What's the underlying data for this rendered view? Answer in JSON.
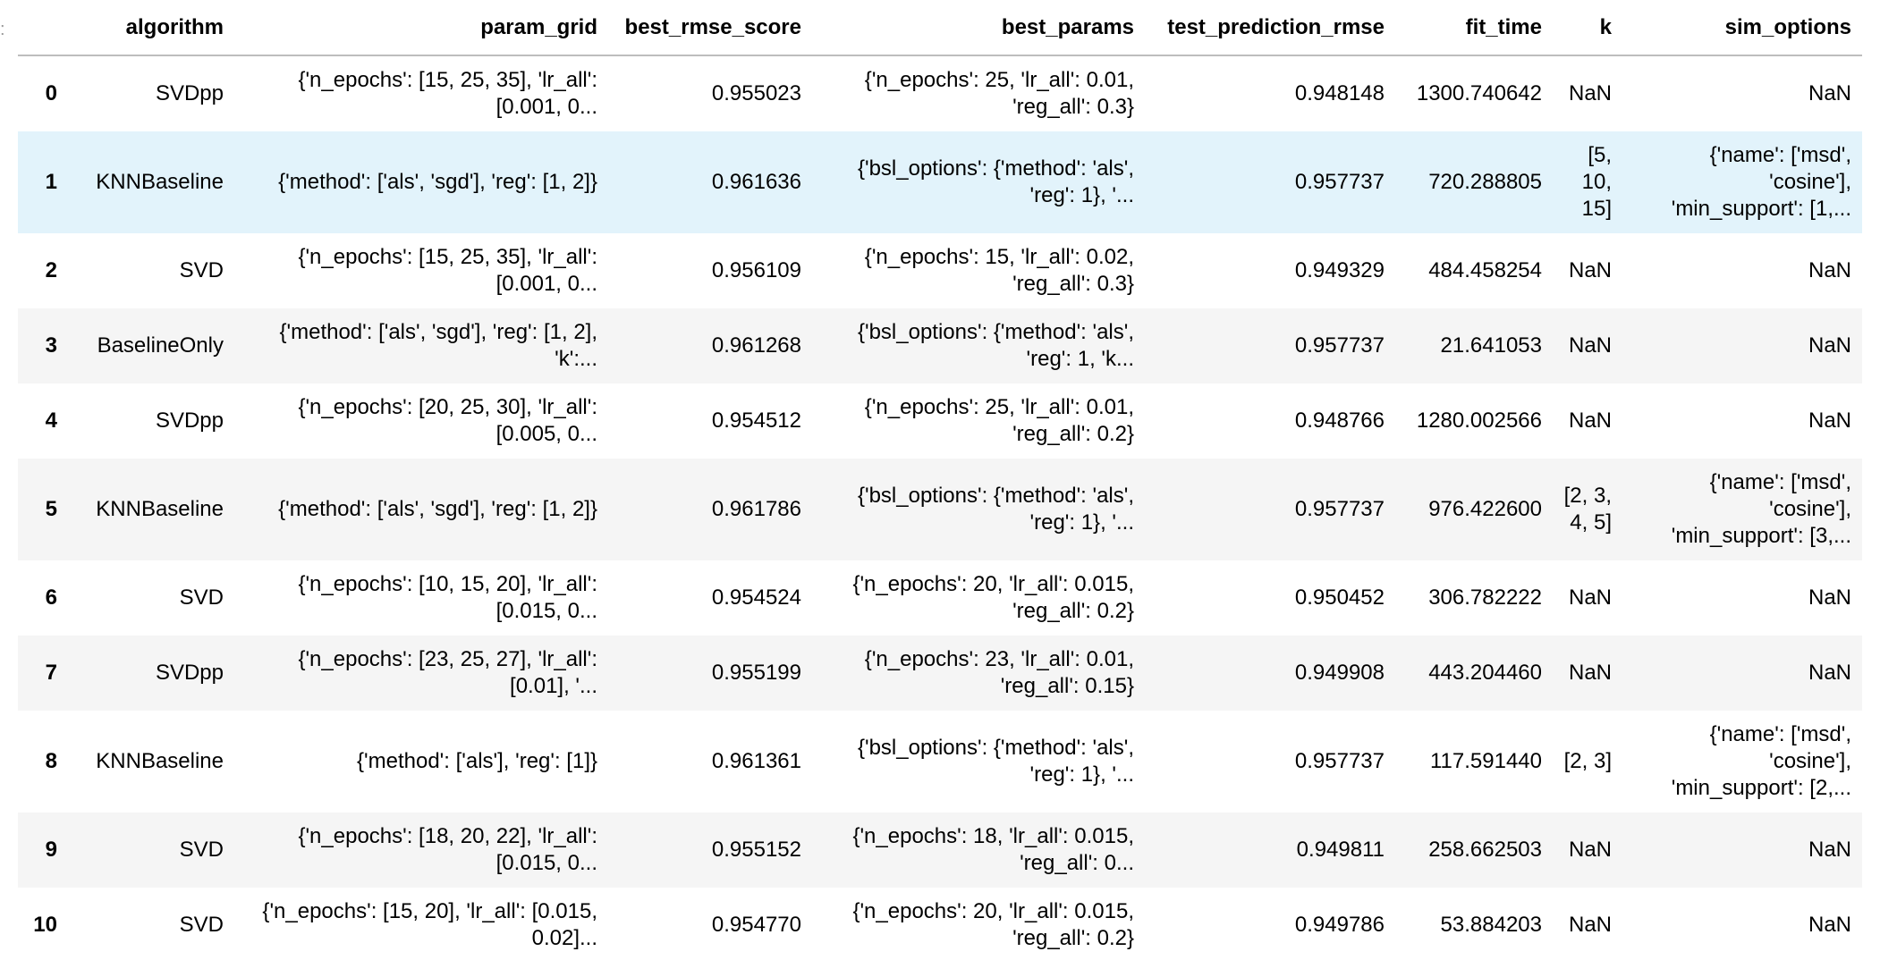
{
  "table": {
    "index_header": "",
    "columns": [
      "algorithm",
      "param_grid",
      "best_rmse_score",
      "best_params",
      "test_prediction_rmse",
      "fit_time",
      "k",
      "sim_options"
    ],
    "rows": [
      {
        "index": "0",
        "algorithm": "SVDpp",
        "param_grid": "{'n_epochs': [15, 25, 35], 'lr_all': [0.001, 0...",
        "best_rmse_score": "0.955023",
        "best_params": "{'n_epochs': 25, 'lr_all': 0.01, 'reg_all': 0.3}",
        "test_prediction_rmse": "0.948148",
        "fit_time": "1300.740642",
        "k": "NaN",
        "sim_options": "NaN"
      },
      {
        "index": "1",
        "algorithm": "KNNBaseline",
        "param_grid": "{'method': ['als', 'sgd'], 'reg': [1, 2]}",
        "best_rmse_score": "0.961636",
        "best_params": "{'bsl_options': {'method': 'als', 'reg': 1}, '...",
        "test_prediction_rmse": "0.957737",
        "fit_time": "720.288805",
        "k": "[5, 10, 15]",
        "sim_options": "{'name': ['msd', 'cosine'], 'min_support': [1,..."
      },
      {
        "index": "2",
        "algorithm": "SVD",
        "param_grid": "{'n_epochs': [15, 25, 35], 'lr_all': [0.001, 0...",
        "best_rmse_score": "0.956109",
        "best_params": "{'n_epochs': 15, 'lr_all': 0.02, 'reg_all': 0.3}",
        "test_prediction_rmse": "0.949329",
        "fit_time": "484.458254",
        "k": "NaN",
        "sim_options": "NaN"
      },
      {
        "index": "3",
        "algorithm": "BaselineOnly",
        "param_grid": "{'method': ['als', 'sgd'], 'reg': [1, 2], 'k':...",
        "best_rmse_score": "0.961268",
        "best_params": "{'bsl_options': {'method': 'als', 'reg': 1, 'k...",
        "test_prediction_rmse": "0.957737",
        "fit_time": "21.641053",
        "k": "NaN",
        "sim_options": "NaN"
      },
      {
        "index": "4",
        "algorithm": "SVDpp",
        "param_grid": "{'n_epochs': [20, 25, 30], 'lr_all': [0.005, 0...",
        "best_rmse_score": "0.954512",
        "best_params": "{'n_epochs': 25, 'lr_all': 0.01, 'reg_all': 0.2}",
        "test_prediction_rmse": "0.948766",
        "fit_time": "1280.002566",
        "k": "NaN",
        "sim_options": "NaN"
      },
      {
        "index": "5",
        "algorithm": "KNNBaseline",
        "param_grid": "{'method': ['als', 'sgd'], 'reg': [1, 2]}",
        "best_rmse_score": "0.961786",
        "best_params": "{'bsl_options': {'method': 'als', 'reg': 1}, '...",
        "test_prediction_rmse": "0.957737",
        "fit_time": "976.422600",
        "k": "[2, 3, 4, 5]",
        "sim_options": "{'name': ['msd', 'cosine'], 'min_support': [3,..."
      },
      {
        "index": "6",
        "algorithm": "SVD",
        "param_grid": "{'n_epochs': [10, 15, 20], 'lr_all': [0.015, 0...",
        "best_rmse_score": "0.954524",
        "best_params": "{'n_epochs': 20, 'lr_all': 0.015, 'reg_all': 0.2}",
        "test_prediction_rmse": "0.950452",
        "fit_time": "306.782222",
        "k": "NaN",
        "sim_options": "NaN"
      },
      {
        "index": "7",
        "algorithm": "SVDpp",
        "param_grid": "{'n_epochs': [23, 25, 27], 'lr_all': [0.01], '...",
        "best_rmse_score": "0.955199",
        "best_params": "{'n_epochs': 23, 'lr_all': 0.01, 'reg_all': 0.15}",
        "test_prediction_rmse": "0.949908",
        "fit_time": "443.204460",
        "k": "NaN",
        "sim_options": "NaN"
      },
      {
        "index": "8",
        "algorithm": "KNNBaseline",
        "param_grid": "{'method': ['als'], 'reg': [1]}",
        "best_rmse_score": "0.961361",
        "best_params": "{'bsl_options': {'method': 'als', 'reg': 1}, '...",
        "test_prediction_rmse": "0.957737",
        "fit_time": "117.591440",
        "k": "[2, 3]",
        "sim_options": "{'name': ['msd', 'cosine'], 'min_support': [2,..."
      },
      {
        "index": "9",
        "algorithm": "SVD",
        "param_grid": "{'n_epochs': [18, 20, 22], 'lr_all': [0.015, 0...",
        "best_rmse_score": "0.955152",
        "best_params": "{'n_epochs': 18, 'lr_all': 0.015, 'reg_all': 0...",
        "test_prediction_rmse": "0.949811",
        "fit_time": "258.662503",
        "k": "NaN",
        "sim_options": "NaN"
      },
      {
        "index": "10",
        "algorithm": "SVD",
        "param_grid": "{'n_epochs': [15, 20], 'lr_all': [0.015, 0.02]...",
        "best_rmse_score": "0.954770",
        "best_params": "{'n_epochs': 20, 'lr_all': 0.015, 'reg_all': 0.2}",
        "test_prediction_rmse": "0.949786",
        "fit_time": "53.884203",
        "k": "NaN",
        "sim_options": "NaN"
      }
    ]
  },
  "colors": {
    "row_odd": "#f5f5f5",
    "row_even": "#ffffff",
    "row_hover": "#e2f3fb",
    "header_rule": "#bdbdbd"
  }
}
